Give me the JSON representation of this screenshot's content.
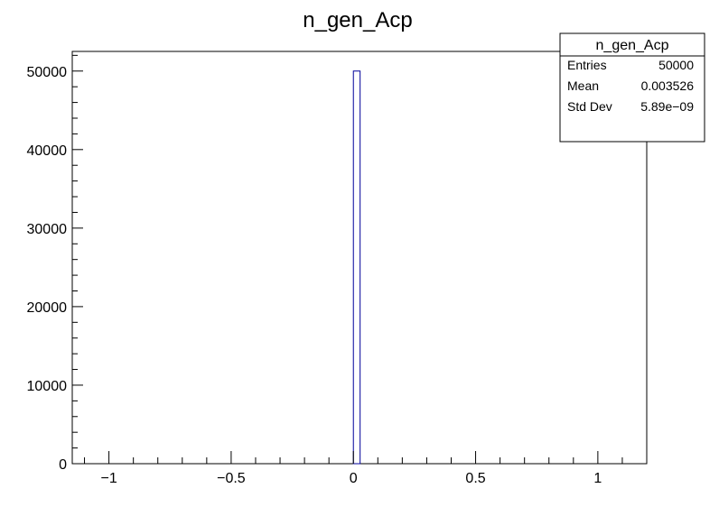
{
  "chart_data": {
    "type": "bar",
    "title": "n_gen_Acp",
    "xlabel": "",
    "ylabel": "",
    "xlim": [
      -1.15,
      1.2
    ],
    "ylim": [
      0,
      52500
    ],
    "x_ticks": [
      {
        "value": -1,
        "label": "−1"
      },
      {
        "value": -0.5,
        "label": "−0.5"
      },
      {
        "value": 0,
        "label": "0"
      },
      {
        "value": 0.5,
        "label": "0.5"
      },
      {
        "value": 1,
        "label": "1"
      }
    ],
    "y_ticks": [
      {
        "value": 0,
        "label": "0"
      },
      {
        "value": 10000,
        "label": "10000"
      },
      {
        "value": 20000,
        "label": "20000"
      },
      {
        "value": 30000,
        "label": "30000"
      },
      {
        "value": 40000,
        "label": "40000"
      },
      {
        "value": 50000,
        "label": "50000"
      }
    ],
    "bins": [
      {
        "low": 0.0,
        "high": 0.0275,
        "count": 50000
      }
    ],
    "line_color": "#000099",
    "stats": {
      "title": "n_gen_Acp",
      "rows": [
        {
          "label": "Entries",
          "value": "50000"
        },
        {
          "label": "Mean",
          "value": "0.003526"
        },
        {
          "label": "Std Dev",
          "value": "5.89e−09"
        }
      ]
    }
  }
}
